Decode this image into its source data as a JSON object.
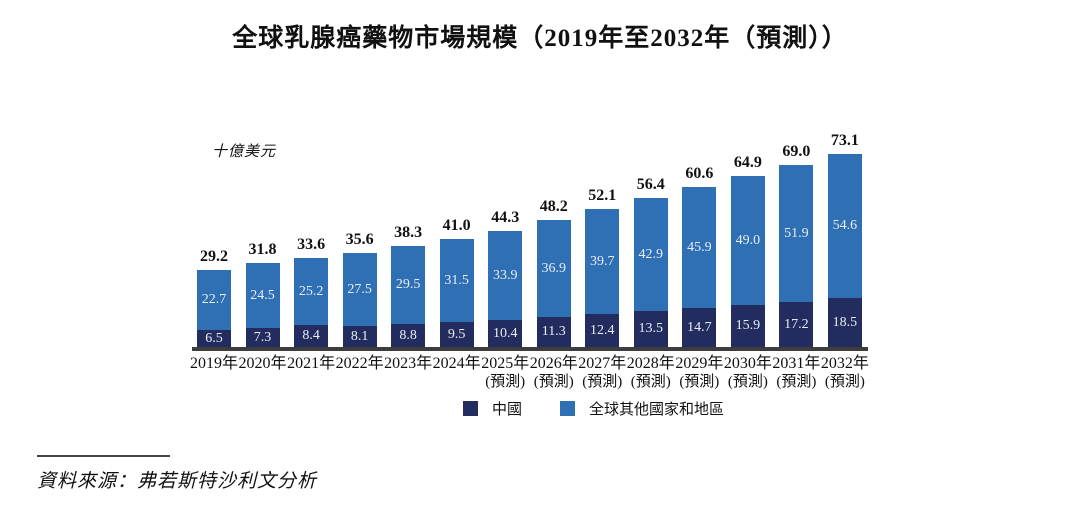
{
  "chart_data": {
    "type": "bar",
    "stacked": true,
    "title": "全球乳腺癌藥物市場規模（2019年至2032年（預測））",
    "unit_label": "十億美元",
    "ylabel": "十億美元",
    "ylim": [
      0,
      75
    ],
    "grid": false,
    "legend_position": "bottom",
    "categories": [
      "2019年",
      "2020年",
      "2021年",
      "2022年",
      "2023年",
      "2024年",
      "2025年",
      "2026年",
      "2027年",
      "2028年",
      "2029年",
      "2030年",
      "2031年",
      "2032年"
    ],
    "forecast_note": "(預測)",
    "forecast_start_index": 6,
    "series": [
      {
        "name": "中國",
        "color": "#232c5f",
        "values": [
          6.5,
          7.3,
          8.4,
          8.1,
          8.8,
          9.5,
          10.4,
          11.3,
          12.4,
          13.5,
          14.7,
          15.9,
          17.2,
          18.5
        ]
      },
      {
        "name": "全球其他國家和地區",
        "color": "#2f70b5",
        "values": [
          22.7,
          24.5,
          25.2,
          27.5,
          29.5,
          31.5,
          33.9,
          36.9,
          39.7,
          42.9,
          45.9,
          49.0,
          51.9,
          54.6
        ]
      }
    ],
    "totals": [
      29.2,
      31.8,
      33.6,
      35.6,
      38.3,
      41.0,
      44.3,
      48.2,
      52.1,
      56.4,
      60.6,
      64.9,
      69.0,
      73.1
    ],
    "colors": {
      "inside_label": "#e9edf4",
      "total_label": "#111111",
      "axis_line": "#3d3d3d"
    }
  },
  "source": {
    "text": "資料來源：弗若斯特沙利文分析"
  }
}
